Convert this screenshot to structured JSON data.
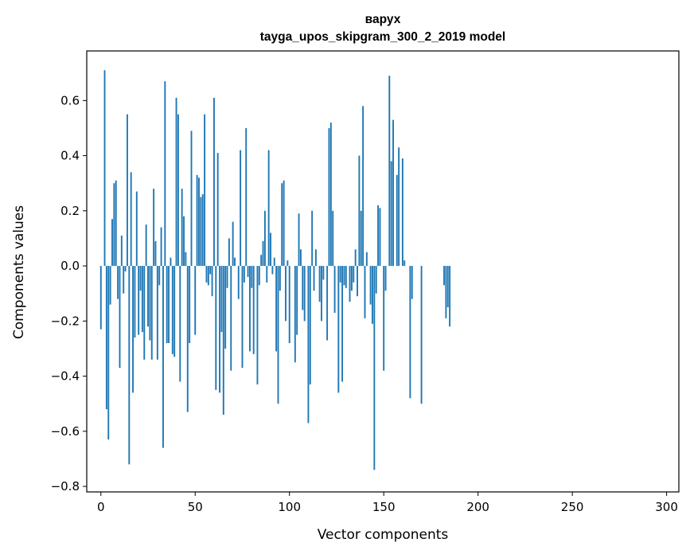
{
  "chart_data": {
    "type": "bar",
    "title": "варух",
    "subtitle": "tayga_upos_skipgram_300_2_2019 model",
    "xlabel": "Vector components",
    "ylabel": "Components values",
    "xlim": [
      -7.5,
      306.5
    ],
    "ylim": [
      -0.82,
      0.78
    ],
    "x_ticks": [
      0,
      50,
      100,
      150,
      200,
      250,
      300
    ],
    "x_tick_labels": [
      "0",
      "50",
      "100",
      "150",
      "200",
      "250",
      "300"
    ],
    "y_ticks": [
      -0.8,
      -0.6,
      -0.4,
      -0.2,
      0.0,
      0.2,
      0.4,
      0.6
    ],
    "y_tick_labels": [
      "−0.8",
      "−0.6",
      "−0.4",
      "−0.2",
      "0.0",
      "0.2",
      "0.4",
      "0.6"
    ],
    "bar_color": "#1f77b4",
    "x": "indices 0..299",
    "values": [
      -0.23,
      0.0,
      0.71,
      -0.52,
      -0.63,
      -0.14,
      0.17,
      0.3,
      0.31,
      -0.12,
      -0.37,
      0.11,
      -0.1,
      -0.02,
      0.55,
      -0.72,
      0.34,
      -0.46,
      -0.26,
      0.27,
      -0.25,
      -0.09,
      -0.24,
      -0.34,
      0.15,
      -0.22,
      -0.27,
      -0.34,
      0.28,
      0.09,
      -0.34,
      -0.07,
      0.14,
      -0.66,
      0.67,
      -0.28,
      -0.28,
      0.03,
      -0.32,
      -0.33,
      0.61,
      0.55,
      -0.42,
      0.28,
      0.18,
      0.05,
      -0.53,
      -0.28,
      0.49,
      0.0,
      -0.25,
      0.33,
      0.32,
      0.25,
      0.26,
      0.55,
      -0.06,
      -0.07,
      -0.03,
      -0.11,
      0.61,
      -0.45,
      0.41,
      -0.46,
      -0.24,
      -0.54,
      -0.3,
      -0.08,
      0.1,
      -0.38,
      0.16,
      0.03,
      0.0,
      -0.12,
      0.42,
      -0.37,
      -0.06,
      0.5,
      -0.04,
      -0.31,
      -0.08,
      -0.32,
      0.0,
      -0.43,
      -0.07,
      0.04,
      0.09,
      0.2,
      -0.06,
      0.42,
      0.12,
      -0.03,
      0.03,
      -0.31,
      -0.5,
      -0.09,
      0.3,
      0.31,
      -0.2,
      0.02,
      -0.28,
      0.0,
      0.0,
      -0.35,
      -0.25,
      0.19,
      0.06,
      -0.16,
      -0.2,
      0.0,
      -0.57,
      -0.43,
      0.2,
      -0.09,
      0.06,
      0.0,
      -0.13,
      -0.2,
      -0.05,
      0.0,
      -0.27,
      0.5,
      0.52,
      0.2,
      -0.17,
      0.0,
      -0.46,
      -0.06,
      -0.42,
      -0.07,
      -0.08,
      0.0,
      -0.13,
      -0.09,
      -0.06,
      0.06,
      -0.11,
      0.4,
      0.2,
      0.58,
      -0.19,
      0.05,
      0.0,
      -0.14,
      -0.21,
      -0.74,
      -0.1,
      0.22,
      0.21,
      0.0,
      -0.38,
      -0.09,
      0.0,
      0.69,
      0.38,
      0.53,
      0.0,
      0.33,
      0.43,
      0.0,
      0.39,
      0.02,
      0.0,
      0.0,
      -0.48,
      -0.12,
      0.0,
      0.0,
      0.0,
      0.0,
      -0.5,
      0.0,
      0.0,
      0.0,
      0.0,
      0.0,
      0.0,
      0.0,
      0.0,
      0.0,
      0.0,
      0.0,
      -0.07,
      -0.19,
      -0.15,
      -0.22,
      0.0,
      0.0,
      0.0,
      0.0,
      0.0,
      0.0,
      0.0,
      0.0,
      0.0,
      0.0,
      0.0,
      0.0,
      0.0,
      0.0,
      0.0,
      0.0,
      0.0,
      0.0,
      0.0,
      0.0,
      0.0,
      0.0,
      0.0,
      0.0,
      0.0,
      0.0,
      0.0,
      0.0,
      0.0,
      0.0,
      0.0,
      0.0,
      0.0,
      0.0,
      0.0,
      0.0,
      0.0,
      0.0,
      0.0,
      0.0,
      0.0,
      0.0,
      0.0,
      0.0,
      0.0,
      0.0,
      0.0,
      0.0,
      0.0,
      0.0,
      0.0,
      0.0,
      0.0,
      0.0,
      0.0,
      0.0,
      0.0,
      0.0,
      0.0,
      0.0,
      0.0,
      0.0,
      0.0,
      0.0,
      0.0,
      0.0,
      0.0,
      0.0,
      0.0,
      0.0,
      0.0,
      0.0,
      0.0,
      0.0,
      0.0,
      0.0,
      0.0,
      0.0,
      0.0,
      0.0,
      0.0,
      0.0,
      0.0,
      0.0,
      0.0,
      0.0,
      0.0,
      0.0,
      0.0,
      0.0,
      0.0,
      0.0,
      0.0,
      0.0,
      0.0,
      0.0,
      0.0,
      0.0,
      0.0,
      0.0,
      0.0,
      0.0,
      0.0,
      0.0,
      0.0,
      0.0
    ]
  }
}
